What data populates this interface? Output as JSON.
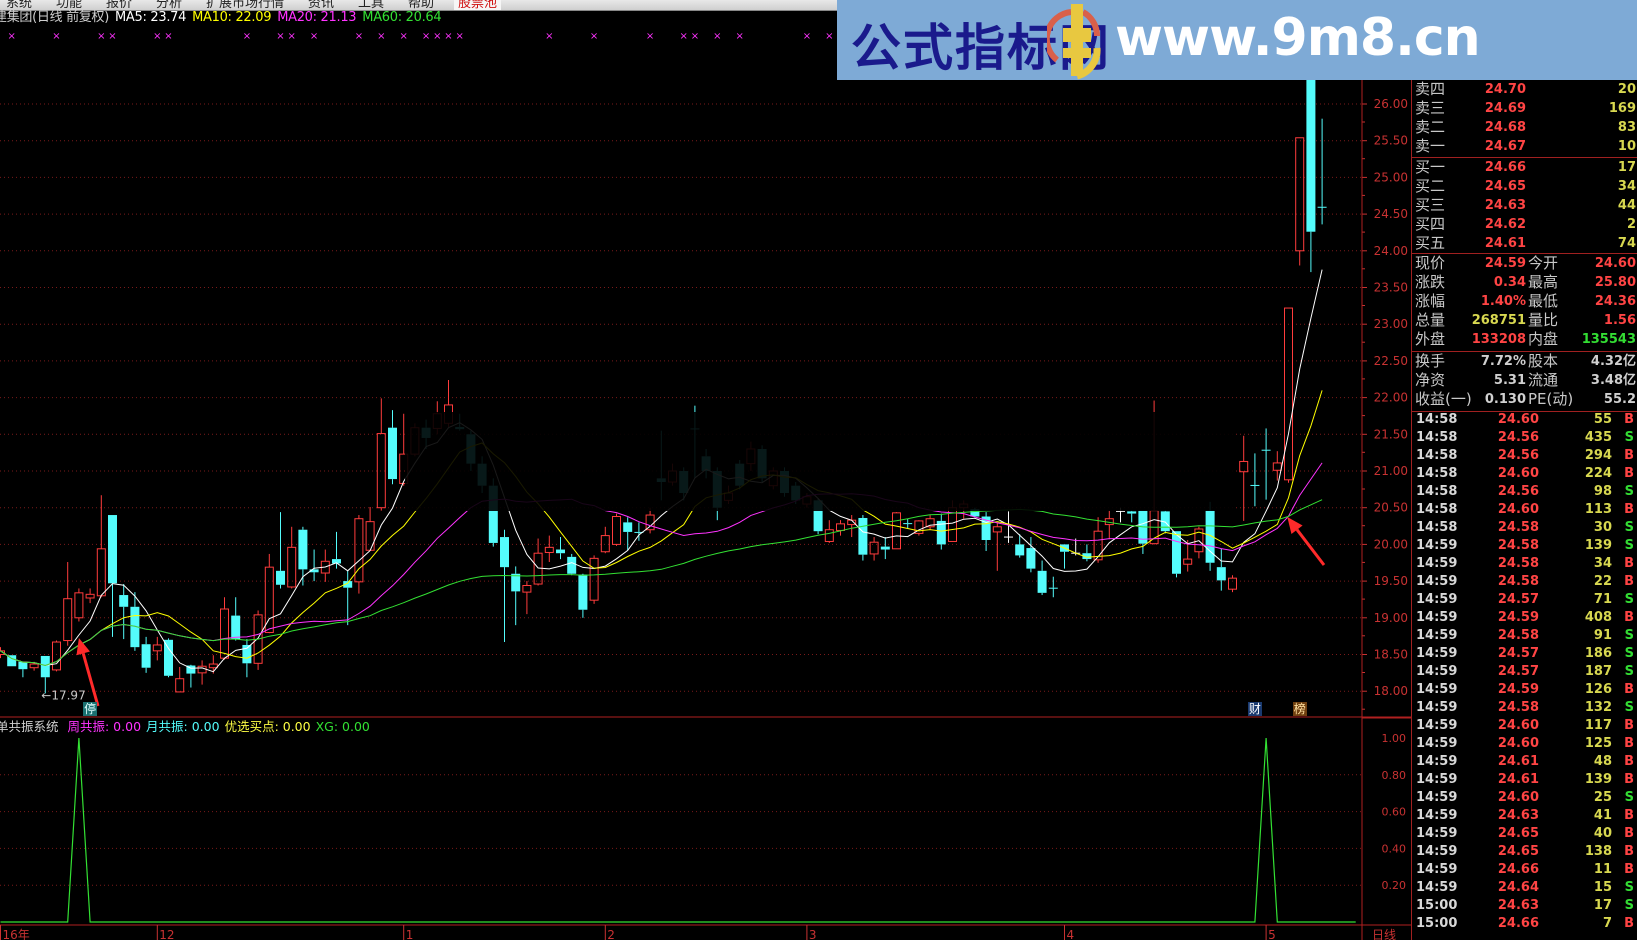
{
  "menu": {
    "items": [
      "系统",
      "功能",
      "报价",
      "分析",
      "扩展市场行情",
      "资讯",
      "工具",
      "帮助"
    ],
    "stock_pool": "股票池"
  },
  "title": {
    "stock": "建集团(日线 前复权)",
    "ma5": "MA5: 23.74",
    "ma10": "MA10: 22.09",
    "ma20": "MA20: 21.13",
    "ma60": "MA60: 20.64"
  },
  "colors": {
    "up": "#ff3c3c",
    "down": "#54fcfc",
    "doji": "#ffffff",
    "ma5": "#ffffff",
    "ma10": "#ffff00",
    "ma20": "#ff33ff",
    "ma60": "#33e033",
    "grid": "#7a1a1a",
    "axis": "#c83232",
    "xg": "#33e033",
    "signal": "#ff33ff"
  },
  "banner": {
    "cn": "公式指标网",
    "url": "www.9m8.cn",
    "logo_text": "www.9m8.cn"
  },
  "main_axis": {
    "ticks": [
      "26.00",
      "25.50",
      "25.00",
      "24.50",
      "24.00",
      "23.50",
      "23.00",
      "22.50",
      "22.00",
      "21.50",
      "21.00",
      "20.50",
      "20.00",
      "19.50",
      "19.00",
      "18.50",
      "18.00"
    ]
  },
  "low_label": "17.97",
  "markers": {
    "halt": "停",
    "finance": "财",
    "list": "榜"
  },
  "chart_data": {
    "type": "candlestick",
    "ohlc": [
      [
        18.5,
        18.6,
        18.45,
        18.55
      ],
      [
        18.49,
        18.49,
        18.34,
        18.34
      ],
      [
        18.4,
        18.4,
        18.19,
        18.3
      ],
      [
        18.32,
        18.4,
        18.28,
        18.37
      ],
      [
        18.48,
        18.48,
        17.97,
        18.19
      ],
      [
        18.29,
        18.69,
        18.27,
        18.67
      ],
      [
        18.69,
        19.76,
        18.62,
        19.26
      ],
      [
        19.0,
        19.4,
        18.95,
        19.34
      ],
      [
        19.27,
        19.4,
        19.2,
        19.32
      ],
      [
        19.3,
        20.67,
        19.28,
        19.94
      ],
      [
        20.4,
        20.4,
        18.74,
        19.47
      ],
      [
        19.31,
        19.46,
        18.71,
        19.15
      ],
      [
        19.15,
        19.35,
        18.55,
        18.6
      ],
      [
        18.64,
        18.74,
        18.25,
        18.32
      ],
      [
        18.55,
        18.74,
        18.42,
        18.63
      ],
      [
        18.7,
        18.72,
        18.19,
        18.21
      ],
      [
        17.99,
        18.33,
        17.99,
        18.17
      ],
      [
        18.35,
        18.36,
        18.05,
        18.24
      ],
      [
        18.25,
        18.42,
        18.09,
        18.34
      ],
      [
        18.32,
        18.49,
        18.24,
        18.37
      ],
      [
        18.45,
        19.28,
        18.43,
        19.12
      ],
      [
        19.03,
        19.28,
        18.69,
        18.71
      ],
      [
        18.63,
        18.71,
        18.19,
        18.38
      ],
      [
        18.38,
        19.1,
        18.29,
        19.04
      ],
      [
        18.8,
        19.87,
        18.79,
        19.69
      ],
      [
        19.64,
        20.44,
        19.4,
        19.45
      ],
      [
        19.42,
        20.24,
        19.4,
        19.96
      ],
      [
        20.2,
        20.24,
        19.44,
        19.66
      ],
      [
        19.66,
        19.93,
        19.5,
        19.62
      ],
      [
        19.61,
        19.93,
        19.49,
        19.77
      ],
      [
        19.8,
        20.17,
        19.67,
        19.74
      ],
      [
        19.5,
        19.65,
        18.9,
        19.41
      ],
      [
        19.49,
        20.4,
        19.33,
        20.35
      ],
      [
        19.92,
        20.51,
        19.91,
        20.31
      ],
      [
        20.5,
        21.99,
        20.46,
        21.51
      ],
      [
        21.59,
        21.83,
        20.82,
        20.89
      ],
      [
        20.83,
        21.78,
        20.8,
        21.23
      ],
      [
        21.23,
        21.65,
        21.2,
        21.59
      ],
      [
        21.59,
        21.7,
        21.3,
        21.45
      ],
      [
        21.58,
        21.95,
        21.5,
        21.78
      ],
      [
        21.65,
        22.24,
        21.6,
        21.9
      ],
      [
        21.6,
        21.78,
        21.55,
        21.57
      ],
      [
        21.5,
        21.55,
        21.0,
        21.1
      ],
      [
        21.1,
        21.2,
        20.7,
        20.8
      ],
      [
        20.8,
        20.9,
        19.97,
        20.02
      ],
      [
        20.1,
        20.2,
        18.67,
        19.69
      ],
      [
        19.6,
        19.7,
        18.9,
        19.36
      ],
      [
        19.35,
        19.5,
        19.05,
        19.44
      ],
      [
        19.46,
        20.08,
        19.44,
        19.88
      ],
      [
        19.89,
        20.12,
        19.76,
        19.96
      ],
      [
        19.93,
        20.1,
        19.8,
        19.88
      ],
      [
        19.83,
        19.87,
        19.58,
        19.6
      ],
      [
        19.59,
        19.6,
        19.0,
        19.11
      ],
      [
        19.24,
        19.85,
        19.19,
        19.81
      ],
      [
        19.9,
        20.24,
        19.88,
        20.12
      ],
      [
        20.0,
        20.42,
        19.98,
        20.38
      ],
      [
        20.3,
        20.37,
        19.92,
        20.17
      ],
      [
        20.17,
        20.3,
        20.05,
        20.16
      ],
      [
        20.2,
        20.5,
        20.15,
        20.4
      ],
      [
        20.9,
        21.55,
        20.6,
        20.85
      ],
      [
        20.85,
        21.1,
        20.8,
        21.0
      ],
      [
        21.0,
        21.05,
        20.6,
        20.7
      ],
      [
        21.58,
        21.89,
        20.9,
        21.57
      ],
      [
        21.2,
        21.3,
        20.9,
        21.0
      ],
      [
        21.0,
        21.05,
        20.33,
        20.5
      ],
      [
        20.6,
        20.8,
        20.55,
        20.7
      ],
      [
        21.1,
        21.15,
        20.75,
        20.8
      ],
      [
        21.1,
        21.4,
        21.0,
        21.3
      ],
      [
        21.3,
        21.35,
        20.85,
        20.9
      ],
      [
        20.8,
        21.05,
        20.75,
        21.0
      ],
      [
        21.0,
        21.05,
        20.65,
        20.7
      ],
      [
        20.8,
        20.85,
        20.55,
        20.6
      ],
      [
        20.55,
        20.7,
        20.5,
        20.65
      ],
      [
        20.6,
        20.62,
        20.14,
        20.18
      ],
      [
        20.04,
        20.33,
        20.02,
        20.2
      ],
      [
        20.19,
        20.33,
        20.12,
        20.28
      ],
      [
        20.27,
        20.4,
        20.1,
        20.33
      ],
      [
        20.36,
        20.4,
        19.78,
        19.86
      ],
      [
        19.87,
        20.1,
        19.78,
        20.03
      ],
      [
        19.97,
        20.1,
        19.8,
        19.93
      ],
      [
        19.94,
        20.44,
        19.94,
        20.43
      ],
      [
        20.29,
        20.35,
        20.21,
        20.28
      ],
      [
        20.15,
        20.33,
        20.12,
        20.32
      ],
      [
        20.24,
        20.4,
        20.2,
        20.35
      ],
      [
        20.32,
        20.42,
        19.93,
        20.0
      ],
      [
        20.04,
        20.6,
        20.04,
        20.5
      ],
      [
        20.5,
        20.6,
        20.35,
        20.55
      ],
      [
        20.48,
        20.5,
        20.38,
        20.38
      ],
      [
        20.38,
        20.44,
        19.91,
        20.06
      ],
      [
        20.17,
        20.3,
        19.64,
        20.24
      ],
      [
        20.1,
        20.45,
        20.02,
        20.1
      ],
      [
        20.0,
        20.14,
        19.82,
        19.85
      ],
      [
        19.95,
        20.1,
        19.62,
        19.67
      ],
      [
        19.64,
        19.78,
        19.31,
        19.34
      ],
      [
        19.41,
        19.56,
        19.28,
        19.4
      ],
      [
        20.0,
        20.0,
        19.67,
        19.9
      ],
      [
        19.88,
        20.08,
        19.85,
        19.88
      ],
      [
        19.88,
        20.0,
        19.77,
        19.8
      ],
      [
        19.79,
        20.37,
        19.75,
        20.18
      ],
      [
        20.27,
        20.46,
        20.07,
        20.35
      ],
      [
        20.45,
        20.5,
        20.3,
        20.45
      ],
      [
        20.45,
        20.46,
        20.3,
        20.42
      ],
      [
        20.46,
        20.46,
        19.87,
        20.01
      ],
      [
        20.01,
        21.96,
        20.0,
        20.46
      ],
      [
        20.45,
        20.46,
        20.15,
        20.18
      ],
      [
        20.18,
        20.18,
        19.55,
        19.6
      ],
      [
        19.73,
        20.06,
        19.63,
        19.8
      ],
      [
        19.9,
        20.24,
        19.81,
        20.21
      ],
      [
        20.46,
        20.58,
        19.64,
        19.75
      ],
      [
        19.69,
        19.94,
        19.37,
        19.51
      ],
      [
        19.39,
        19.58,
        19.35,
        19.54
      ],
      [
        20.99,
        21.48,
        20.32,
        21.13
      ],
      [
        20.81,
        21.24,
        20.52,
        20.8
      ],
      [
        21.29,
        21.58,
        20.61,
        21.28
      ],
      [
        21.01,
        21.27,
        20.87,
        21.11
      ],
      [
        20.88,
        23.22,
        20.84,
        23.22
      ],
      [
        24.0,
        25.54,
        23.8,
        25.54
      ],
      [
        26.9,
        27.0,
        23.71,
        24.26
      ],
      [
        24.6,
        25.8,
        24.36,
        24.59
      ]
    ],
    "ma_periods": [
      5,
      10,
      20,
      60
    ],
    "ylim": [
      18.0,
      26.0
    ],
    "x_labels": [
      {
        "text": "16年",
        "bar": 0
      },
      {
        "text": "12",
        "bar": 14
      },
      {
        "text": "1",
        "bar": 36
      },
      {
        "text": "2",
        "bar": 54
      },
      {
        "text": "3",
        "bar": 72
      },
      {
        "text": "4",
        "bar": 95
      },
      {
        "text": "5",
        "bar": 113
      }
    ],
    "period_label": "日线",
    "signal_bars": [
      1,
      5,
      9,
      10,
      14,
      15,
      22,
      25,
      26,
      28,
      32,
      34,
      36,
      38,
      39,
      40,
      41,
      49,
      53,
      58,
      61,
      62,
      64,
      66,
      72,
      74
    ],
    "halt_bar": 8,
    "finance_bar": 112,
    "list_bar": 116,
    "arrow_bars": [
      7,
      114
    ],
    "indicator": {
      "name": "单共振系统",
      "legend": [
        {
          "label": "周共振: 0.00",
          "color": "#ff33ff"
        },
        {
          "label": "月共振: 0.00",
          "color": "#54fcfc"
        },
        {
          "label": "优选买点: 0.00",
          "color": "#ffff44"
        },
        {
          "label": "XG: 0.00",
          "color": "#33e033"
        }
      ],
      "ticks": [
        "1.00",
        "0.80",
        "0.60",
        "0.40",
        "0.20"
      ],
      "ylim": [
        0,
        1
      ],
      "xg_spike_bars": [
        7,
        113
      ]
    }
  },
  "orderbook": {
    "asks": [
      {
        "label": "卖四",
        "price": "24.70",
        "vol": "20"
      },
      {
        "label": "卖三",
        "price": "24.69",
        "vol": "169"
      },
      {
        "label": "卖二",
        "price": "24.68",
        "vol": "83"
      },
      {
        "label": "卖一",
        "price": "24.67",
        "vol": "10"
      }
    ],
    "bids": [
      {
        "label": "买一",
        "price": "24.66",
        "vol": "17"
      },
      {
        "label": "买二",
        "price": "24.65",
        "vol": "34"
      },
      {
        "label": "买三",
        "price": "24.63",
        "vol": "44"
      },
      {
        "label": "买四",
        "price": "24.62",
        "vol": "2"
      },
      {
        "label": "买五",
        "price": "24.61",
        "vol": "74"
      }
    ]
  },
  "quote": [
    {
      "l1": "现价",
      "v1": "24.59",
      "c1": "#ff4444",
      "l2": "今开",
      "v2": "24.60",
      "c2": "#ff4444"
    },
    {
      "l1": "涨跌",
      "v1": "0.34",
      "c1": "#ff4444",
      "l2": "最高",
      "v2": "25.80",
      "c2": "#ff4444"
    },
    {
      "l1": "涨幅",
      "v1": "1.40%",
      "c1": "#ff4444",
      "l2": "最低",
      "v2": "24.36",
      "c2": "#ff4444"
    },
    {
      "l1": "总量",
      "v1": "268751",
      "c1": "#d8d850",
      "l2": "量比",
      "v2": "1.56",
      "c2": "#ff4444"
    },
    {
      "l1": "外盘",
      "v1": "133208",
      "c1": "#ff4444",
      "l2": "内盘",
      "v2": "135543",
      "c2": "#33dd33"
    }
  ],
  "fundamentals": [
    {
      "l1": "换手",
      "v1": "7.72%",
      "l2": "股本",
      "v2": "4.32亿"
    },
    {
      "l1": "净资",
      "v1": "5.31",
      "l2": "流通",
      "v2": "3.48亿"
    },
    {
      "l1": "收益(一)",
      "v1": "0.130",
      "l2": "PE(动)",
      "v2": "55.2"
    }
  ],
  "trades": [
    [
      "14:58",
      "24.60",
      "55",
      "B"
    ],
    [
      "14:58",
      "24.56",
      "435",
      "S"
    ],
    [
      "14:58",
      "24.56",
      "294",
      "B"
    ],
    [
      "14:58",
      "24.60",
      "224",
      "B"
    ],
    [
      "14:58",
      "24.56",
      "98",
      "S"
    ],
    [
      "14:58",
      "24.60",
      "113",
      "B"
    ],
    [
      "14:58",
      "24.58",
      "30",
      "S"
    ],
    [
      "14:59",
      "24.58",
      "139",
      "S"
    ],
    [
      "14:59",
      "24.58",
      "34",
      "B"
    ],
    [
      "14:59",
      "24.58",
      "22",
      "B"
    ],
    [
      "14:59",
      "24.57",
      "71",
      "S"
    ],
    [
      "14:59",
      "24.59",
      "408",
      "B"
    ],
    [
      "14:59",
      "24.58",
      "91",
      "S"
    ],
    [
      "14:59",
      "24.57",
      "186",
      "S"
    ],
    [
      "14:59",
      "24.57",
      "187",
      "S"
    ],
    [
      "14:59",
      "24.59",
      "126",
      "B"
    ],
    [
      "14:59",
      "24.58",
      "132",
      "S"
    ],
    [
      "14:59",
      "24.60",
      "117",
      "B"
    ],
    [
      "14:59",
      "24.60",
      "125",
      "B"
    ],
    [
      "14:59",
      "24.61",
      "48",
      "B"
    ],
    [
      "14:59",
      "24.61",
      "139",
      "B"
    ],
    [
      "14:59",
      "24.60",
      "25",
      "S"
    ],
    [
      "14:59",
      "24.63",
      "41",
      "B"
    ],
    [
      "14:59",
      "24.65",
      "40",
      "B"
    ],
    [
      "14:59",
      "24.65",
      "138",
      "B"
    ],
    [
      "14:59",
      "24.66",
      "11",
      "B"
    ],
    [
      "14:59",
      "24.64",
      "15",
      "S"
    ],
    [
      "15:00",
      "24.63",
      "17",
      "S"
    ],
    [
      "15:00",
      "24.66",
      "7",
      "B"
    ]
  ]
}
